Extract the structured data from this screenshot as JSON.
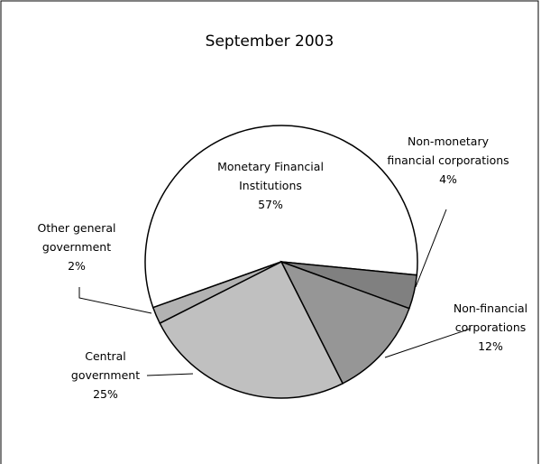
{
  "chart_data": {
    "type": "pie",
    "title": "September 2003",
    "categories": [
      "Monetary Financial Institutions",
      "Non-monetary financial corporations",
      "Non-financial corporations",
      "Central government",
      "Other general government"
    ],
    "values": [
      57,
      4,
      12,
      25,
      2
    ],
    "value_labels": [
      "57%",
      "4%",
      "12%",
      "25%",
      "2%"
    ],
    "colors": [
      "#ffffff",
      "#808080",
      "#969696",
      "#c0c0c0",
      "#b2b2b2"
    ]
  }
}
